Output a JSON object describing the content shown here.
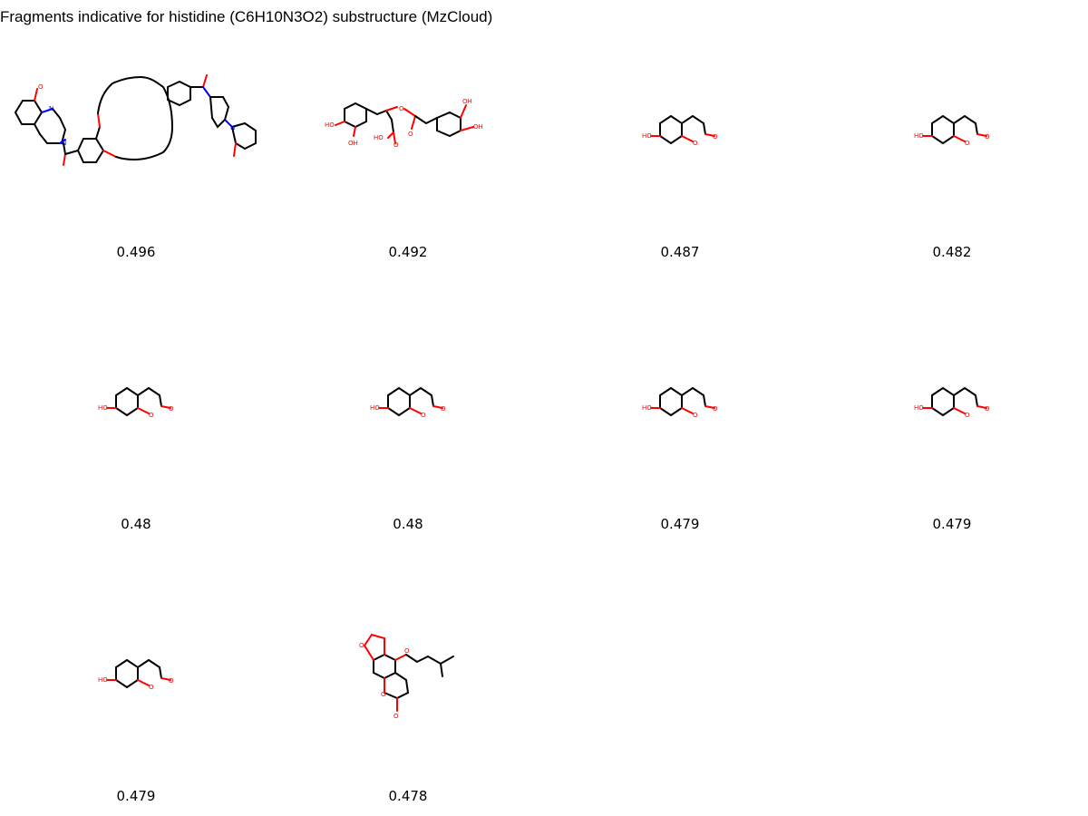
{
  "title": "Fragments indicative for histidine (C6H10N3O2) substructure (MzCloud)",
  "fragments": [
    {
      "score": "0.496",
      "structure": "bis-cytisine-carbonyl dibenzo crown ether"
    },
    {
      "score": "0.492",
      "structure": "rosmarinic acid"
    },
    {
      "score": "0.487",
      "structure": "umbelliferone"
    },
    {
      "score": "0.482",
      "structure": "umbelliferone"
    },
    {
      "score": "0.48",
      "structure": "umbelliferone"
    },
    {
      "score": "0.48",
      "structure": "umbelliferone"
    },
    {
      "score": "0.479",
      "structure": "umbelliferone"
    },
    {
      "score": "0.479",
      "structure": "umbelliferone"
    },
    {
      "score": "0.479",
      "structure": "umbelliferone"
    },
    {
      "score": "0.478",
      "structure": "imperatorin-type furocoumarin"
    }
  ],
  "atom_labels": {
    "hydroxyl": "HO",
    "hydroxyl_r": "OH",
    "oxygen": "O",
    "nitrogen": "N"
  }
}
